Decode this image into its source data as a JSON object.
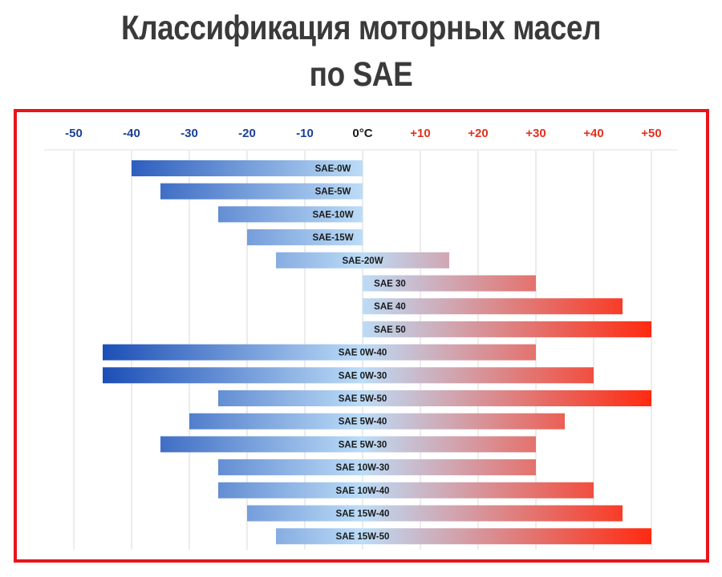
{
  "title_line1": "Классификация моторных масел",
  "title_line2": "по SAE",
  "chart_data": {
    "type": "bar",
    "orientation": "horizontal-range",
    "xlim": [
      -50,
      50
    ],
    "ticks": [
      {
        "value": -50,
        "label": "-50"
      },
      {
        "value": -40,
        "label": "-40"
      },
      {
        "value": -30,
        "label": "-30"
      },
      {
        "value": -20,
        "label": "-20"
      },
      {
        "value": -10,
        "label": "-10"
      },
      {
        "value": 0,
        "label": "0°C"
      },
      {
        "value": 10,
        "label": "+10"
      },
      {
        "value": 20,
        "label": "+20"
      },
      {
        "value": 30,
        "label": "+30"
      },
      {
        "value": 40,
        "label": "+40"
      },
      {
        "value": 50,
        "label": "+50"
      }
    ],
    "grid": true,
    "colors": {
      "cold": "#0a3faf",
      "mid": "#bcdcf7",
      "hot": "#ff2a10",
      "neg_tick": "#1a3f97",
      "pos_tick": "#e3311d",
      "zero_tick": "#1a1a1a",
      "frame": "#e8141c"
    },
    "bars": [
      {
        "label": "SAE-0W",
        "min": -40,
        "max": 0
      },
      {
        "label": "SAE-5W",
        "min": -35,
        "max": 0
      },
      {
        "label": "SAE-10W",
        "min": -25,
        "max": 0
      },
      {
        "label": "SAE-15W",
        "min": -20,
        "max": 0
      },
      {
        "label": "SAE-20W",
        "min": -15,
        "max": 15
      },
      {
        "label": "SAE 30",
        "min": 0,
        "max": 30
      },
      {
        "label": "SAE 40",
        "min": 0,
        "max": 45
      },
      {
        "label": "SAE 50",
        "min": 0,
        "max": 50
      },
      {
        "label": "SAE 0W-40",
        "min": -45,
        "max": 30
      },
      {
        "label": "SAE 0W-30",
        "min": -45,
        "max": 40
      },
      {
        "label": "SAE 5W-50",
        "min": -25,
        "max": 50
      },
      {
        "label": "SAE 5W-40",
        "min": -30,
        "max": 35
      },
      {
        "label": "SAE 5W-30",
        "min": -35,
        "max": 30
      },
      {
        "label": "SAE 10W-30",
        "min": -25,
        "max": 30
      },
      {
        "label": "SAE 10W-40",
        "min": -25,
        "max": 40
      },
      {
        "label": "SAE 15W-40",
        "min": -20,
        "max": 45
      },
      {
        "label": "SAE 15W-50",
        "min": -15,
        "max": 50
      }
    ]
  }
}
